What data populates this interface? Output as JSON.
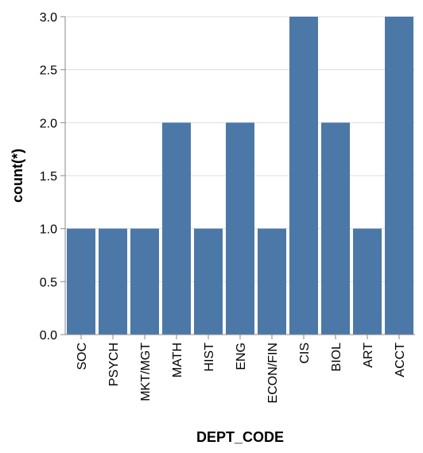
{
  "chart_data": {
    "type": "bar",
    "categories": [
      "SOC",
      "PSYCH",
      "MKT/MGT",
      "MATH",
      "HIST",
      "ENG",
      "ECON/FIN",
      "CIS",
      "BIOL",
      "ART",
      "ACCT"
    ],
    "values": [
      1,
      1,
      1,
      2,
      1,
      2,
      1,
      3,
      2,
      1,
      3
    ],
    "xlabel": "DEPT_CODE",
    "ylabel": "count(*)",
    "ylim": [
      0,
      3
    ],
    "yticks": [
      "0.0",
      "0.5",
      "1.0",
      "1.5",
      "2.0",
      "2.5",
      "3.0"
    ],
    "grid": true,
    "bar_color": "#4c78a8"
  }
}
